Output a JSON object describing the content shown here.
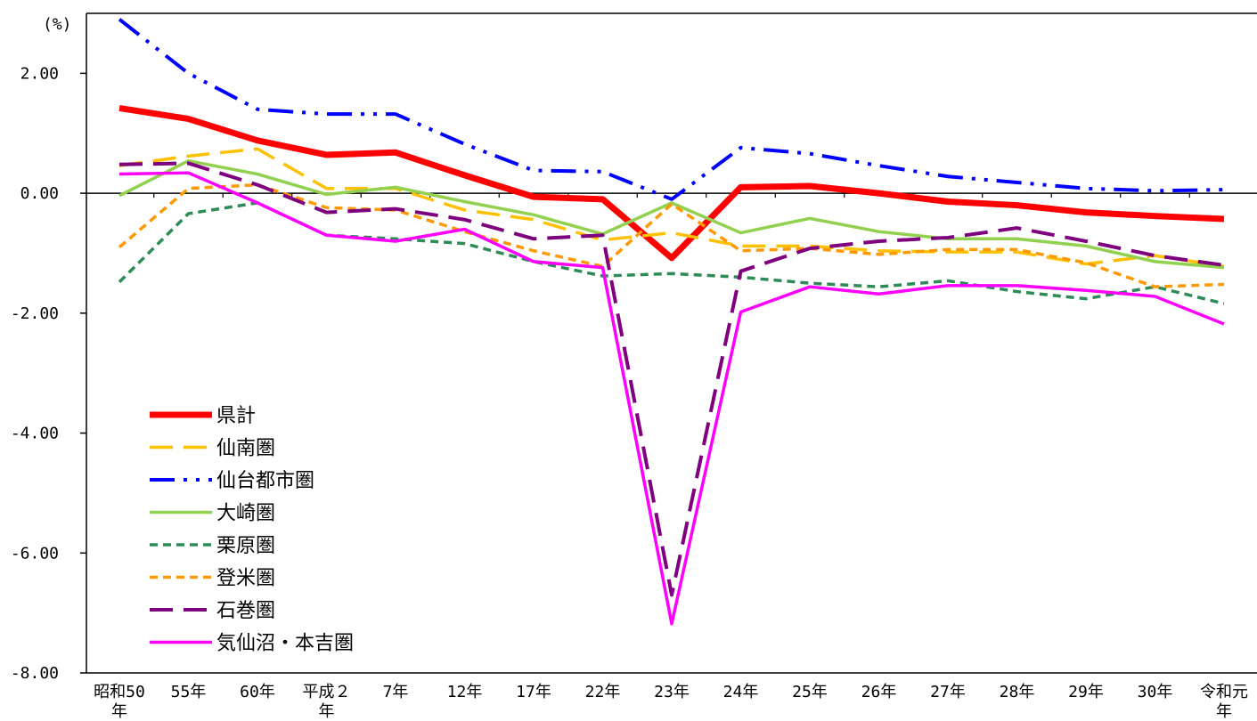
{
  "chart_data": {
    "type": "line",
    "ylabel": "(%)",
    "ylim": [
      -8,
      3
    ],
    "yticks": [
      2,
      0,
      -2,
      -4,
      -6,
      -8
    ],
    "ytick_labels": [
      "2.00",
      "0.00",
      "-2.00",
      "-4.00",
      "-6.00",
      "-8.00"
    ],
    "categories": [
      "昭和50年",
      "55年",
      "60年",
      "平成２年",
      "7年",
      "12年",
      "17年",
      "22年",
      "23年",
      "24年",
      "25年",
      "26年",
      "27年",
      "28年",
      "29年",
      "30年",
      "令和元年"
    ],
    "category_lines": [
      [
        "昭和50",
        "年"
      ],
      [
        "55年"
      ],
      [
        "60年"
      ],
      [
        "平成２",
        "年"
      ],
      [
        "7年"
      ],
      [
        "12年"
      ],
      [
        "17年"
      ],
      [
        "22年"
      ],
      [
        "23年"
      ],
      [
        "24年"
      ],
      [
        "25年"
      ],
      [
        "26年"
      ],
      [
        "27年"
      ],
      [
        "28年"
      ],
      [
        "29年"
      ],
      [
        "30年"
      ],
      [
        "令和元",
        "年"
      ]
    ],
    "legend_position": "bottom-left",
    "series": [
      {
        "name": "県計",
        "color": "#FF0000",
        "width": 7,
        "dash": "",
        "values": [
          1.42,
          1.24,
          0.88,
          0.64,
          0.68,
          0.3,
          -0.06,
          -0.1,
          -1.08,
          0.1,
          0.12,
          0.0,
          -0.14,
          -0.2,
          -0.32,
          -0.38,
          -0.43
        ]
      },
      {
        "name": "仙南圏",
        "color": "#FFC000",
        "width": 3.5,
        "dash": "26,12",
        "values": [
          0.46,
          0.62,
          0.74,
          0.08,
          0.08,
          -0.28,
          -0.44,
          -0.78,
          -0.66,
          -0.88,
          -0.88,
          -0.96,
          -0.98,
          -0.98,
          -1.18,
          -1.04,
          -1.22
        ]
      },
      {
        "name": "仙台都市圏",
        "color": "#0000FF",
        "width": 4,
        "dash": "28,10,4,10,4,10",
        "values": [
          2.9,
          2.0,
          1.4,
          1.32,
          1.32,
          0.82,
          0.38,
          0.36,
          -0.1,
          0.76,
          0.66,
          0.46,
          0.28,
          0.18,
          0.08,
          0.04,
          0.06
        ]
      },
      {
        "name": "大崎圏",
        "color": "#92D050",
        "width": 3.5,
        "dash": "",
        "values": [
          -0.04,
          0.54,
          0.32,
          -0.02,
          0.1,
          -0.14,
          -0.36,
          -0.68,
          -0.16,
          -0.66,
          -0.42,
          -0.64,
          -0.76,
          -0.76,
          -0.88,
          -1.14,
          -1.24
        ]
      },
      {
        "name": "栗原圏",
        "color": "#2E8B57",
        "width": 3.5,
        "dash": "9,6",
        "values": [
          -1.48,
          -0.34,
          -0.16,
          -0.7,
          -0.76,
          -0.84,
          -1.14,
          -1.38,
          -1.34,
          -1.4,
          -1.5,
          -1.56,
          -1.46,
          -1.64,
          -1.76,
          -1.56,
          -1.84
        ]
      },
      {
        "name": "登米圏",
        "color": "#FF9900",
        "width": 3.5,
        "dash": "9,6",
        "values": [
          -0.9,
          0.08,
          0.14,
          -0.24,
          -0.28,
          -0.64,
          -0.96,
          -1.22,
          -0.18,
          -0.96,
          -0.92,
          -1.02,
          -0.94,
          -0.94,
          -1.16,
          -1.56,
          -1.52
        ]
      },
      {
        "name": "石巻圏",
        "color": "#7F007F",
        "width": 4,
        "dash": "26,12",
        "values": [
          0.48,
          0.5,
          0.14,
          -0.32,
          -0.26,
          -0.44,
          -0.76,
          -0.7,
          -6.7,
          -1.3,
          -0.92,
          -0.8,
          -0.74,
          -0.58,
          -0.8,
          -1.04,
          -1.2
        ]
      },
      {
        "name": "気仙沼・本吉圏",
        "color": "#FF00FF",
        "width": 3.5,
        "dash": "",
        "values": [
          0.32,
          0.34,
          -0.16,
          -0.7,
          -0.8,
          -0.6,
          -1.14,
          -1.24,
          -7.18,
          -1.98,
          -1.56,
          -1.68,
          -1.54,
          -1.54,
          -1.62,
          -1.72,
          -2.18
        ]
      }
    ]
  }
}
